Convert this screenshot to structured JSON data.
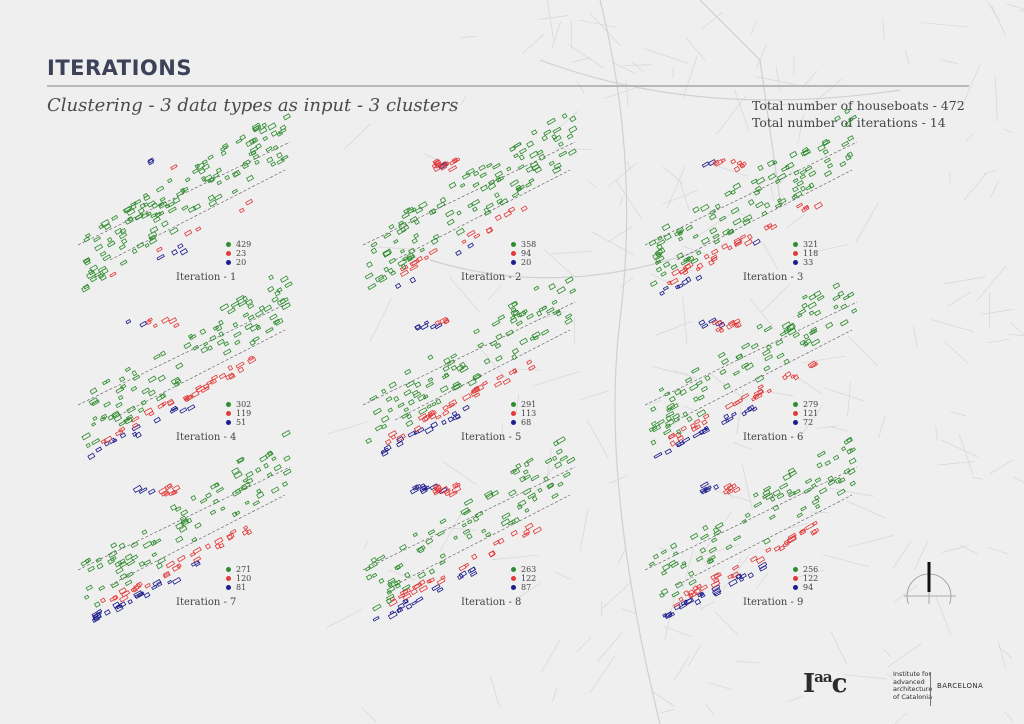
{
  "header": {
    "title": "ITERATIONS",
    "subtitle": "Clustering - 3 data types as input - 3 clusters",
    "total_houseboats": "Total number of houseboats - 472",
    "total_iterations": "Total number of iterations - 14"
  },
  "colors": {
    "cluster_green": "#2e8b2e",
    "cluster_red": "#e23a3a",
    "cluster_blue": "#1c1c8c",
    "title": "#3d4259"
  },
  "panels": [
    {
      "label": "Iteration - 1",
      "counts": [
        429,
        23,
        20
      ]
    },
    {
      "label": "Iteration - 2",
      "counts": [
        358,
        94,
        20
      ]
    },
    {
      "label": "Iteration - 3",
      "counts": [
        321,
        118,
        33
      ]
    },
    {
      "label": "Iteration - 4",
      "counts": [
        302,
        119,
        51
      ]
    },
    {
      "label": "Iteration - 5",
      "counts": [
        291,
        113,
        68
      ]
    },
    {
      "label": "Iteration - 6",
      "counts": [
        279,
        121,
        72
      ]
    },
    {
      "label": "Iteration - 7",
      "counts": [
        271,
        120,
        81
      ]
    },
    {
      "label": "Iteration - 8",
      "counts": [
        263,
        122,
        87
      ]
    },
    {
      "label": "Iteration - 9",
      "counts": [
        256,
        122,
        94
      ]
    }
  ],
  "logo": {
    "mark": "Iaac",
    "institute": "Institute for advanced architecture of Catalonia",
    "city": "BARCELONA"
  },
  "north_arrow_icon": "north-arrow-icon"
}
